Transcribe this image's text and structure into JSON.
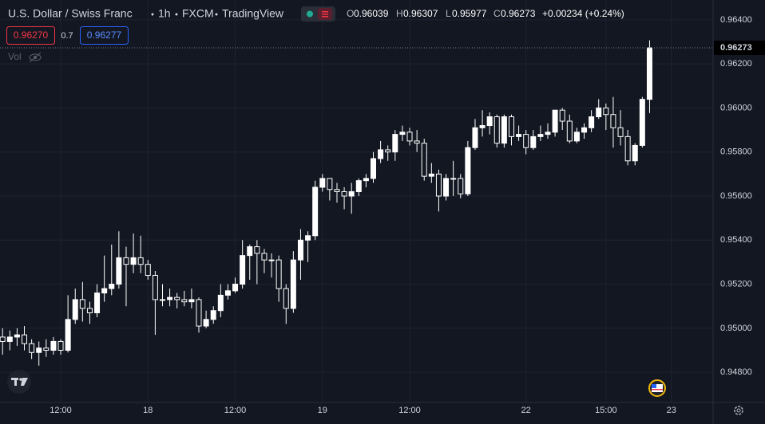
{
  "header": {
    "title": "U.S. Dollar / Swiss Franc",
    "interval": "1h",
    "source": "FXCM",
    "platform": "TradingView",
    "ohlc_labels": [
      "O",
      "H",
      "L",
      "C"
    ],
    "change": "+0.00234 (+0.24%)"
  },
  "trade_panel": {
    "bid": "0.96270",
    "spread": "0.7",
    "ask": "0.96277"
  },
  "volume_label": "Vol",
  "chart_data": {
    "type": "candlestick",
    "categories": [
      null,
      null,
      null,
      null,
      null,
      null,
      null,
      null,
      "12:00",
      null,
      null,
      null,
      null,
      null,
      null,
      null,
      null,
      null,
      null,
      null,
      "18",
      null,
      null,
      null,
      null,
      null,
      null,
      null,
      null,
      null,
      null,
      null,
      "12:00",
      null,
      null,
      null,
      null,
      null,
      null,
      null,
      null,
      null,
      null,
      null,
      "19",
      null,
      null,
      null,
      null,
      null,
      null,
      null,
      null,
      null,
      null,
      null,
      "12:00",
      null,
      null,
      null,
      null,
      null,
      null,
      null,
      null,
      null,
      null,
      null,
      null,
      null,
      null,
      null,
      "22",
      null,
      null,
      null,
      null,
      null,
      null,
      null,
      null,
      null,
      null,
      "15:00",
      null,
      null,
      null,
      null,
      null,
      null,
      null,
      null,
      "23"
    ],
    "open": [
      0.9496,
      0.9494,
      0.9496,
      0.9497,
      0.9493,
      0.9489,
      0.9491,
      0.949,
      0.9494,
      0.949,
      0.9504,
      0.9513,
      0.9509,
      0.9507,
      0.9516,
      0.9518,
      0.952,
      0.9532,
      0.9529,
      0.9532,
      0.9529,
      0.9524,
      0.9513,
      0.9513,
      0.9514,
      0.9513,
      0.9512,
      0.9513,
      0.9501,
      0.9504,
      0.9508,
      0.9515,
      0.9517,
      0.952,
      0.9533,
      0.9537,
      0.9534,
      0.9531,
      0.9531,
      0.9518,
      0.9509,
      0.9531,
      0.954,
      0.9542,
      0.9564,
      0.9568,
      0.9563,
      0.9562,
      0.956,
      0.9562,
      0.9567,
      0.9568,
      0.9577,
      0.9581,
      0.958,
      0.9588,
      0.9589,
      0.9585,
      0.9584,
      0.9569,
      0.957,
      0.956,
      0.9568,
      0.9568,
      0.9561,
      0.9582,
      0.9591,
      0.9592,
      0.9596,
      0.9584,
      0.9596,
      0.9587,
      0.9588,
      0.9582,
      0.9587,
      0.9588,
      0.9589,
      0.9599,
      0.9594,
      0.9585,
      0.9589,
      0.9591,
      0.9596,
      0.96,
      0.9597,
      0.9591,
      0.9587,
      0.9576,
      0.9583,
      0.96039,
      null,
      null,
      null
    ],
    "high": [
      0.95,
      0.9499,
      0.95,
      0.9501,
      0.9495,
      0.9494,
      0.9495,
      0.9496,
      0.9495,
      0.9515,
      0.9518,
      0.9521,
      0.9512,
      0.952,
      0.9533,
      0.9538,
      0.9544,
      0.9537,
      0.9543,
      0.9542,
      0.9531,
      0.9526,
      0.952,
      0.9518,
      0.9516,
      0.9517,
      0.9518,
      0.9514,
      0.9508,
      0.951,
      0.952,
      0.952,
      0.9523,
      0.954,
      0.9538,
      0.954,
      0.9536,
      0.9534,
      0.9533,
      0.952,
      0.9535,
      0.9545,
      0.9544,
      0.9567,
      0.957,
      0.9568,
      0.9566,
      0.9564,
      0.9566,
      0.9568,
      0.957,
      0.958,
      0.9585,
      0.9583,
      0.959,
      0.9592,
      0.9591,
      0.959,
      0.9586,
      0.9575,
      0.9572,
      0.957,
      0.9576,
      0.957,
      0.9585,
      0.9595,
      0.9599,
      0.9598,
      0.9597,
      0.9597,
      0.9597,
      0.9592,
      0.959,
      0.959,
      0.9592,
      0.9593,
      0.9599,
      0.96,
      0.9597,
      0.9591,
      0.9593,
      0.9599,
      0.9604,
      0.9602,
      0.9605,
      0.9599,
      0.959,
      0.9584,
      0.9605,
      0.96307,
      null,
      null,
      null
    ],
    "low": [
      0.9488,
      0.949,
      0.9492,
      0.949,
      0.9486,
      0.9483,
      0.9487,
      0.9488,
      0.9488,
      0.9489,
      0.9502,
      0.9503,
      0.9502,
      0.9505,
      0.9512,
      0.9515,
      0.9518,
      0.951,
      0.9525,
      0.9525,
      0.9522,
      0.9497,
      0.951,
      0.951,
      0.9509,
      0.951,
      0.9509,
      0.9498,
      0.95,
      0.9502,
      0.9505,
      0.9513,
      0.9516,
      0.9518,
      0.9522,
      0.952,
      0.9525,
      0.9523,
      0.9512,
      0.9502,
      0.9507,
      0.9522,
      0.953,
      0.954,
      0.9562,
      0.9558,
      0.9557,
      0.9554,
      0.9552,
      0.956,
      0.9564,
      0.9566,
      0.9575,
      0.9576,
      0.9576,
      0.9585,
      0.9583,
      0.958,
      0.9567,
      0.9566,
      0.9553,
      0.9558,
      0.956,
      0.9559,
      0.956,
      0.9581,
      0.9587,
      0.9588,
      0.9582,
      0.9582,
      0.9583,
      0.9585,
      0.9579,
      0.9581,
      0.9585,
      0.9586,
      0.9587,
      0.959,
      0.9584,
      0.9584,
      0.9586,
      0.9589,
      0.9595,
      0.959,
      0.9582,
      0.9583,
      0.9574,
      0.9574,
      0.9582,
      0.95977,
      null,
      null,
      null
    ],
    "close": [
      0.9494,
      0.9496,
      0.9497,
      0.9493,
      0.9489,
      0.9491,
      0.949,
      0.9494,
      0.949,
      0.9504,
      0.9513,
      0.9509,
      0.9507,
      0.9516,
      0.9518,
      0.952,
      0.9532,
      0.9529,
      0.9532,
      0.9529,
      0.9524,
      0.9513,
      0.9513,
      0.9514,
      0.9513,
      0.9512,
      0.9513,
      0.9501,
      0.9504,
      0.9508,
      0.9515,
      0.9517,
      0.952,
      0.9533,
      0.9537,
      0.9534,
      0.9531,
      0.9531,
      0.9518,
      0.9509,
      0.9531,
      0.954,
      0.9542,
      0.9564,
      0.9568,
      0.9563,
      0.9562,
      0.956,
      0.9562,
      0.9567,
      0.9568,
      0.9577,
      0.9581,
      0.958,
      0.9588,
      0.9589,
      0.9585,
      0.9584,
      0.9569,
      0.957,
      0.956,
      0.9568,
      0.9568,
      0.9561,
      0.9582,
      0.9591,
      0.9592,
      0.9596,
      0.9584,
      0.9596,
      0.9587,
      0.9588,
      0.9582,
      0.9587,
      0.9588,
      0.9589,
      0.9599,
      0.9594,
      0.9585,
      0.9589,
      0.9591,
      0.9596,
      0.96,
      0.9597,
      0.9591,
      0.9587,
      0.9576,
      0.9583,
      0.96039,
      0.96273,
      null,
      null,
      null
    ],
    "ylim": [
      0.94663,
      0.9649
    ],
    "yticks": [
      {
        "value": 0.948,
        "label": "0.94800"
      },
      {
        "value": 0.95,
        "label": "0.95000"
      },
      {
        "value": 0.952,
        "label": "0.95200"
      },
      {
        "value": 0.954,
        "label": "0.95400"
      },
      {
        "value": 0.956,
        "label": "0.95600"
      },
      {
        "value": 0.958,
        "label": "0.95800"
      },
      {
        "value": 0.96,
        "label": "0.96000"
      },
      {
        "value": 0.962,
        "label": "0.96200"
      },
      {
        "value": 0.964,
        "label": "0.96400"
      }
    ],
    "grid": true,
    "up_color": "#ffffff",
    "down_color": "#131722",
    "wick_color": "#ffffff"
  }
}
